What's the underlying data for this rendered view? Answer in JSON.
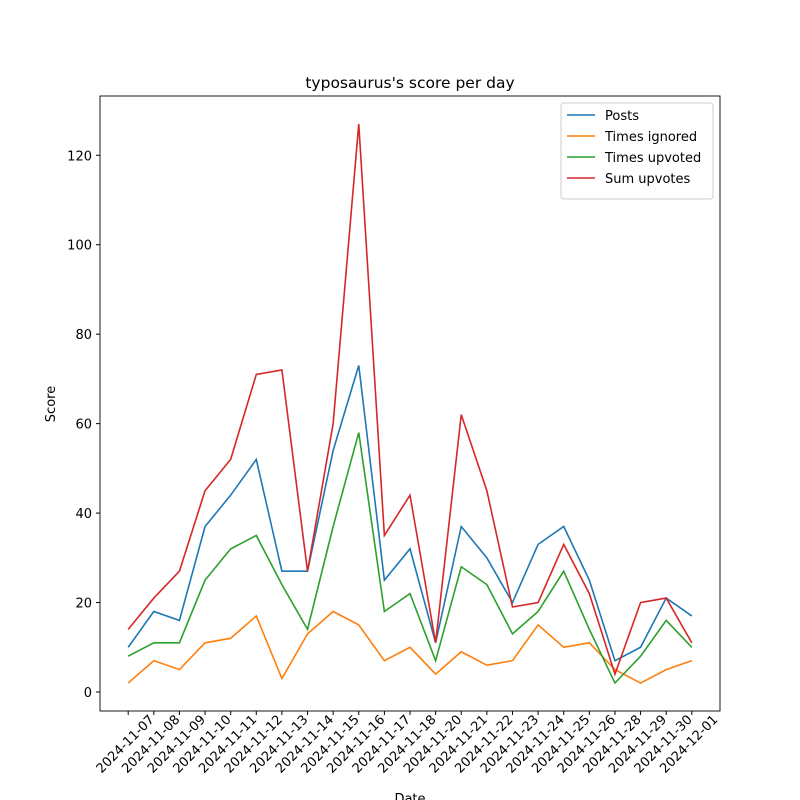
{
  "chart_data": {
    "type": "line",
    "title": "typosaurus's score per day",
    "xlabel": "Date",
    "ylabel": "Score",
    "categories": [
      "2024-11-07",
      "2024-11-08",
      "2024-11-09",
      "2024-11-10",
      "2024-11-11",
      "2024-11-12",
      "2024-11-13",
      "2024-11-14",
      "2024-11-15",
      "2024-11-16",
      "2024-11-17",
      "2024-11-18",
      "2024-11-20",
      "2024-11-21",
      "2024-11-22",
      "2024-11-23",
      "2024-11-24",
      "2024-11-25",
      "2024-11-26",
      "2024-11-28",
      "2024-11-29",
      "2024-11-30",
      "2024-12-01"
    ],
    "series": [
      {
        "name": "Posts",
        "color": "#1f77b4",
        "values": [
          10,
          18,
          16,
          37,
          44,
          52,
          27,
          27,
          54,
          73,
          25,
          32,
          11,
          37,
          30,
          20,
          33,
          37,
          25,
          7,
          10,
          21,
          17
        ]
      },
      {
        "name": "Times ignored",
        "color": "#ff7f0e",
        "values": [
          2,
          7,
          5,
          11,
          12,
          17,
          3,
          13,
          18,
          15,
          7,
          10,
          4,
          9,
          6,
          7,
          15,
          10,
          11,
          5,
          2,
          5,
          7
        ]
      },
      {
        "name": "Times upvoted",
        "color": "#2ca02c",
        "values": [
          8,
          11,
          11,
          25,
          32,
          35,
          24,
          14,
          37,
          58,
          18,
          22,
          7,
          28,
          24,
          13,
          18,
          27,
          14,
          2,
          8,
          16,
          10
        ]
      },
      {
        "name": "Sum upvotes",
        "color": "#d62728",
        "values": [
          14,
          21,
          27,
          45,
          52,
          71,
          72,
          27,
          60,
          127,
          35,
          44,
          11,
          62,
          45,
          19,
          20,
          33,
          22,
          4,
          20,
          21,
          11
        ]
      }
    ],
    "ylim": [
      -4.25,
      133.25
    ],
    "yticks": [
      0,
      20,
      40,
      60,
      80,
      100,
      120
    ],
    "legend": "upper right"
  }
}
